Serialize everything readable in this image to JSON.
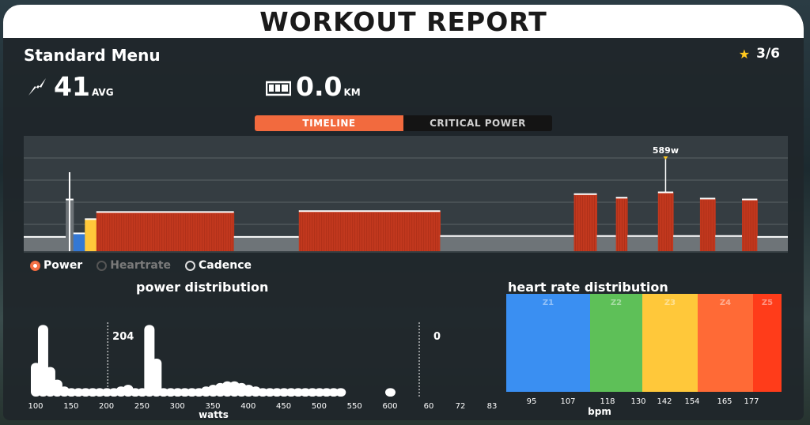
{
  "header": {
    "title": "WORKOUT REPORT"
  },
  "workout": {
    "name": "Standard Menu",
    "rating": "3/6"
  },
  "stats": {
    "power": {
      "value": "41",
      "unit": "AVG",
      "icon": "lightning-icon"
    },
    "distance": {
      "value": "0.0",
      "unit": "KM",
      "icon": "odometer-icon"
    }
  },
  "tabs": [
    {
      "label": "TIMELINE",
      "active": true
    },
    {
      "label": "CRITICAL POWER",
      "active": false
    }
  ],
  "legend": [
    {
      "label": "Power",
      "selected": true
    },
    {
      "label": "Heartrate",
      "selected": false,
      "disabled": true
    },
    {
      "label": "Cadence",
      "selected": false
    }
  ],
  "colors": {
    "accent": "#f26a3e",
    "zone_red": "#c2381e",
    "zone_blue": "#3478d4",
    "zone_green": "#5ec058",
    "zone_yellow": "#ffc83a",
    "zone_orange": "#ff6a36",
    "zone_redorange": "#ff3c1a"
  },
  "chart_data": [
    {
      "type": "area",
      "peak_label": "589w",
      "segments": [
        {
          "t0": 0.0,
          "t1": 0.055,
          "watts": 80,
          "zone": "grey"
        },
        {
          "t0": 0.055,
          "t1": 0.065,
          "watts": 290,
          "zone": "grey"
        },
        {
          "t0": 0.065,
          "t1": 0.08,
          "watts": 100,
          "zone": "blue"
        },
        {
          "t0": 0.08,
          "t1": 0.095,
          "watts": 180,
          "zone": "yellow"
        },
        {
          "t0": 0.095,
          "t1": 0.275,
          "watts": 220,
          "zone": "red"
        },
        {
          "t0": 0.275,
          "t1": 0.36,
          "watts": 80,
          "zone": "grey"
        },
        {
          "t0": 0.36,
          "t1": 0.545,
          "watts": 225,
          "zone": "red"
        },
        {
          "t0": 0.545,
          "t1": 0.72,
          "watts": 85,
          "zone": "grey"
        },
        {
          "t0": 0.72,
          "t1": 0.75,
          "watts": 320,
          "zone": "red"
        },
        {
          "t0": 0.75,
          "t1": 0.775,
          "watts": 85,
          "zone": "grey"
        },
        {
          "t0": 0.775,
          "t1": 0.79,
          "watts": 300,
          "zone": "red"
        },
        {
          "t0": 0.79,
          "t1": 0.83,
          "watts": 85,
          "zone": "grey"
        },
        {
          "t0": 0.83,
          "t1": 0.85,
          "watts": 330,
          "zone": "red"
        },
        {
          "t0": 0.85,
          "t1": 0.885,
          "watts": 85,
          "zone": "grey"
        },
        {
          "t0": 0.885,
          "t1": 0.905,
          "watts": 295,
          "zone": "red"
        },
        {
          "t0": 0.905,
          "t1": 0.94,
          "watts": 85,
          "zone": "grey"
        },
        {
          "t0": 0.94,
          "t1": 0.96,
          "watts": 290,
          "zone": "red"
        },
        {
          "t0": 0.96,
          "t1": 1.0,
          "watts": 80,
          "zone": "grey"
        }
      ],
      "ymax": 620
    },
    {
      "type": "bar",
      "title": "power distribution",
      "xlabel": "watts",
      "marker_label": "204",
      "ticks": [
        "100",
        "150",
        "200",
        "250",
        "300",
        "350",
        "400",
        "450",
        "500",
        "550",
        "600"
      ],
      "bins": [
        100,
        110,
        120,
        130,
        140,
        150,
        160,
        170,
        180,
        190,
        200,
        210,
        220,
        230,
        240,
        250,
        260,
        270,
        280,
        290,
        300,
        310,
        320,
        330,
        340,
        350,
        360,
        370,
        380,
        390,
        400,
        410,
        420,
        430,
        440,
        450,
        460,
        470,
        480,
        490,
        500,
        510,
        520,
        530,
        600
      ],
      "values": [
        40,
        85,
        35,
        20,
        12,
        10,
        10,
        10,
        10,
        10,
        10,
        10,
        12,
        14,
        10,
        10,
        85,
        45,
        10,
        10,
        10,
        10,
        10,
        10,
        12,
        14,
        16,
        18,
        18,
        16,
        14,
        12,
        10,
        10,
        10,
        10,
        10,
        10,
        10,
        10,
        10,
        10,
        10,
        10,
        10
      ],
      "ymax": 90
    },
    {
      "type": "bar",
      "title": "heart rate distribution",
      "xlabel": "bpm",
      "marker_label": "0",
      "ticks": [
        "60",
        "72",
        "83",
        "95",
        "107",
        "118",
        "130",
        "142",
        "154",
        "165",
        "177"
      ],
      "zones": [
        {
          "name": "Z1",
          "color": "#3a8ff2"
        },
        {
          "name": "Z2",
          "color": "#5ec058"
        },
        {
          "name": "Z3",
          "color": "#ffc83a"
        },
        {
          "name": "Z4",
          "color": "#ff6a36"
        },
        {
          "name": "Z5",
          "color": "#ff3c1a"
        }
      ]
    }
  ]
}
